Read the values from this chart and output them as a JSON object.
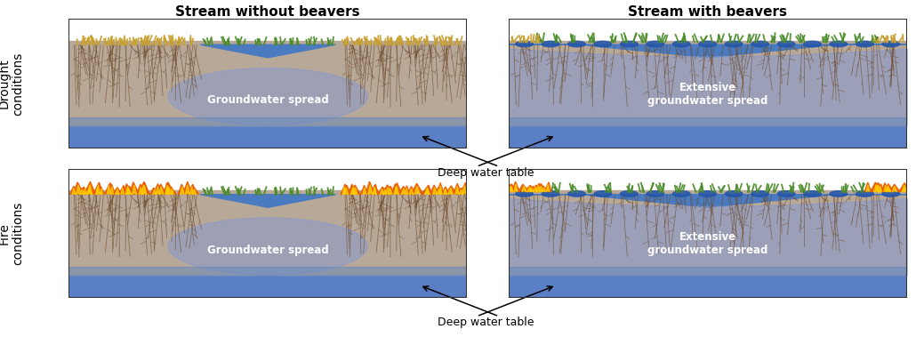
{
  "title_left": "Stream without beavers",
  "title_right": "Stream with beavers",
  "label_drought": "Drought\nconditions",
  "label_fire": "Fire\nconditions",
  "label_gw_spread": "Groundwater spread",
  "label_extensive_gw": "Extensive\ngroundwater spread",
  "label_deep_water": "Deep water table",
  "colors": {
    "soil": "#b8a898",
    "deep_water": "#5b7fc4",
    "stream_water": "#4a7abf",
    "groundwater_spread": "#8899cc",
    "groundwater_spread_alpha": 0.55,
    "water_table_layer": "#6688bb",
    "border": "#333333",
    "grass_green": "#4a8c2a",
    "grass_dry": "#c8a030",
    "root_color": "#6b4a2a",
    "beaver_pond_dot": "#2255aa"
  }
}
